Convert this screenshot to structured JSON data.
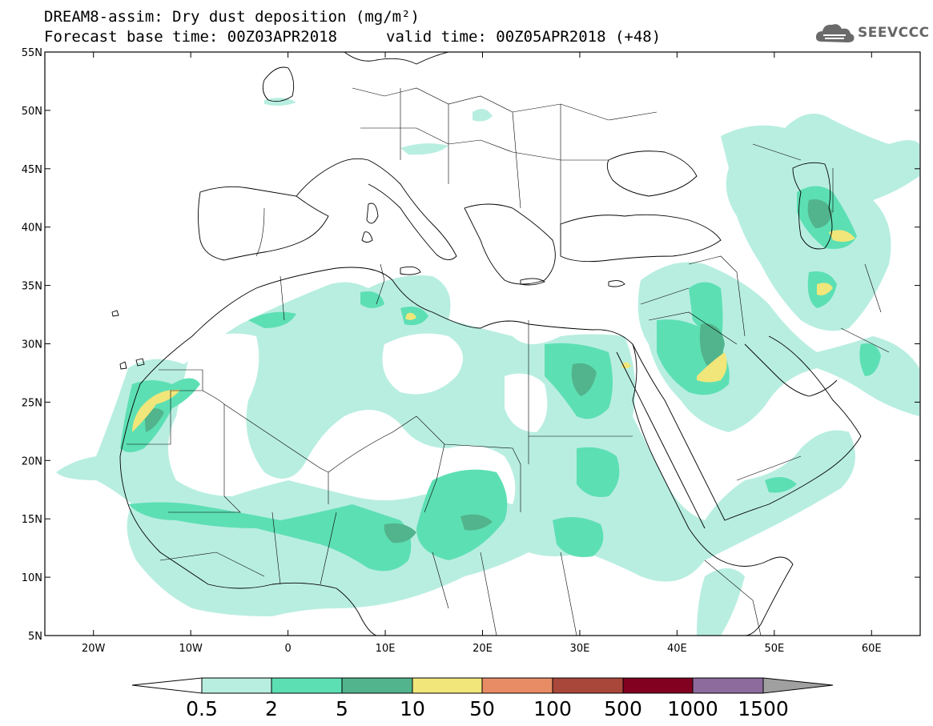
{
  "title": {
    "line1": "DREAM8-assim: Dry dust deposition (mg/m²)",
    "line2": "Forecast base time: 00Z03APR2018",
    "line3": "valid time: 00Z05APR2018 (+48)"
  },
  "logo": {
    "text": "SEEVCCC",
    "icon": "cloud-icon"
  },
  "map": {
    "lon_range": [
      -25,
      65
    ],
    "lat_range": [
      5,
      55
    ],
    "lat_ticks": [
      "55N",
      "50N",
      "45N",
      "40N",
      "35N",
      "30N",
      "25N",
      "20N",
      "15N",
      "10N",
      "5N"
    ],
    "lon_ticks": [
      "20W",
      "10W",
      "0",
      "10E",
      "20E",
      "30E",
      "40E",
      "50E",
      "60E"
    ]
  },
  "colorbar": {
    "labels": [
      "0.5",
      "2",
      "5",
      "10",
      "50",
      "100",
      "500",
      "1000",
      "1500"
    ],
    "colors": [
      "#ffffff",
      "#b8eee0",
      "#5ddfb4",
      "#52b48c",
      "#f1e67a",
      "#e88c66",
      "#a9473a",
      "#820020",
      "#8d6b9c",
      "#a0a0a0"
    ]
  },
  "colors": {
    "level_05": "#b8eee0",
    "level_2": "#5ddfb4",
    "level_5": "#52b48c",
    "level_10": "#f1e67a"
  }
}
